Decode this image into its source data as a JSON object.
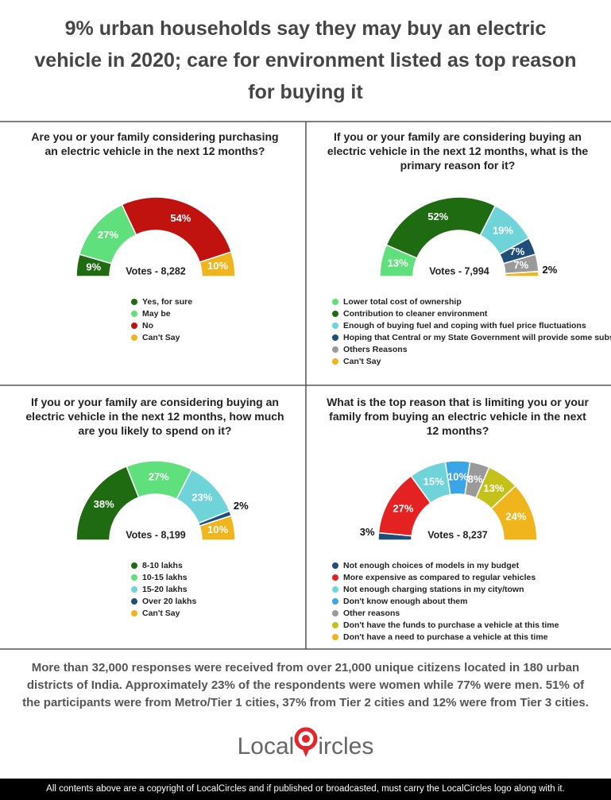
{
  "title": "9% urban households say they may buy an electric vehicle in 2020; care for environment listed as top reason for buying it",
  "chart_data": [
    {
      "type": "semi-donut",
      "title": "Are you or your family considering purchasing an electric vehicle in the next 12 months?",
      "votes": "Votes - 8,282",
      "categories": [
        "Yes, for sure",
        "May be",
        "No",
        "Can't Say"
      ],
      "values": [
        9,
        27,
        54,
        10
      ],
      "value_labels": [
        "9%",
        "27%",
        "54%",
        "10%"
      ],
      "colors": [
        "#1e6b12",
        "#5fe07c",
        "#c0130f",
        "#f0b41c"
      ]
    },
    {
      "type": "semi-donut",
      "title": "If you or your family are considering buying an electric vehicle in the next 12 months, what is the primary reason for it?",
      "votes": "Votes - 7,994",
      "categories": [
        "Lower total cost of ownership",
        "Contribution to cleaner environment",
        "Enough of buying fuel and coping with fuel price fluctuations",
        "Hoping that Central or my State Government will provide some subsidy",
        "Others Reasons",
        "Can't Say"
      ],
      "values": [
        13,
        52,
        19,
        7,
        7,
        2
      ],
      "value_labels": [
        "13%",
        "52%",
        "19%",
        "7%",
        "7%",
        "2%"
      ],
      "colors": [
        "#5fe07c",
        "#1e6b12",
        "#6fd4d9",
        "#1f4e79",
        "#9a9a9a",
        "#f0b41c"
      ]
    },
    {
      "type": "semi-donut",
      "title": "If you or your family are considering buying an electric vehicle in the next 12 months, how much are you likely to spend on it?",
      "votes": "Votes - 8,199",
      "categories": [
        "8-10 lakhs",
        "10-15 lakhs",
        "15-20 lakhs",
        "Over 20 lakhs",
        "Can't Say"
      ],
      "values": [
        38,
        27,
        23,
        2,
        10
      ],
      "value_labels": [
        "38%",
        "27%",
        "23%",
        "2%",
        "10%"
      ],
      "colors": [
        "#1e6b12",
        "#5fe07c",
        "#6fd4d9",
        "#1f4e79",
        "#f0b41c"
      ]
    },
    {
      "type": "semi-donut",
      "title": "What is the top reason that is limiting you or your family from buying an electric vehicle in the next 12 months?",
      "votes": "Votes - 8,237",
      "categories": [
        "Not enough choices of models in my budget",
        "More expensive as compared to regular vehicles",
        "Not enough charging stations in my city/town",
        "Don't know enough about them",
        "Other reasons",
        "Don't have the funds to purchase a vehicle at this time",
        "Don't have a need to purchase a vehicle at this time"
      ],
      "values": [
        3,
        27,
        15,
        10,
        8,
        13,
        24
      ],
      "value_labels": [
        "3%",
        "27%",
        "15%",
        "10%",
        "8%",
        "13%",
        "24%"
      ],
      "colors": [
        "#1f4e79",
        "#e52222",
        "#6fd4d9",
        "#3aa6e8",
        "#9a9a9a",
        "#c4c21a",
        "#f0b41c"
      ]
    }
  ],
  "summary": "More than 32,000 responses were received from over 21,000 unique citizens located in 180 urban districts of India. Approximately 23% of the respondents were women while 77% were men. 51% of the participants were from Metro/Tier 1 cities, 37% from Tier 2 cities and 12% were from Tier 3 cities.",
  "logo": {
    "first": "Local",
    "second": "ircles"
  },
  "footer": "All contents above are a copyright of LocalCircles and if published or broadcasted, must carry the LocalCircles logo along with it."
}
